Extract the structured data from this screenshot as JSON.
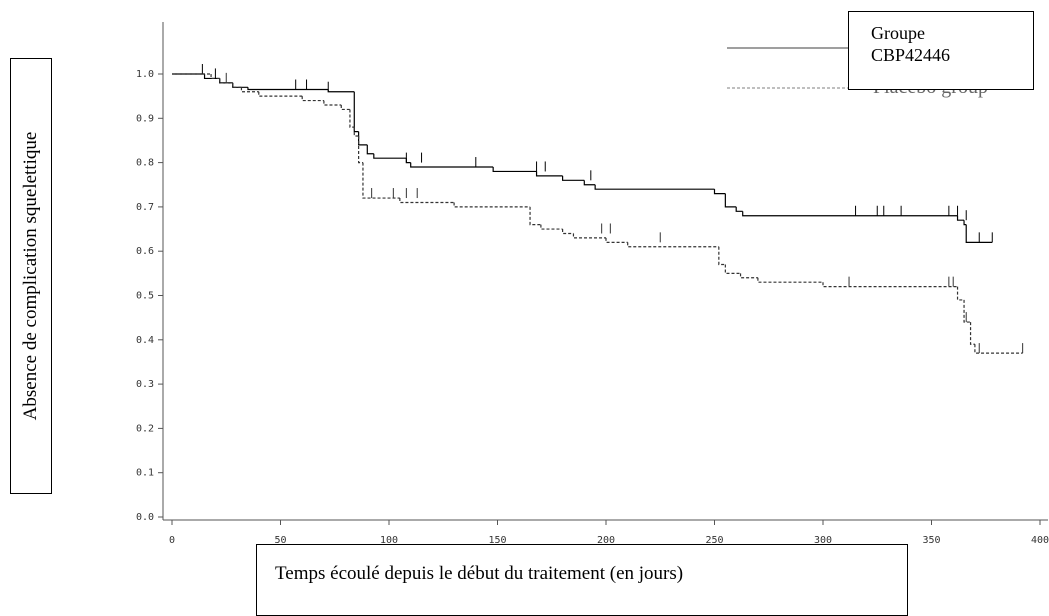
{
  "chart_data": {
    "type": "step",
    "y_label": "Absence de complication squelettique",
    "x_label": "Temps écoulé depuis le début du traitement (en jours)",
    "xlim": [
      0,
      400
    ],
    "xticks": [
      0,
      50,
      100,
      150,
      200,
      250,
      300,
      350,
      400
    ],
    "ylim": [
      0,
      1
    ],
    "yticks": [
      {
        "value": 0,
        "label": "0.0"
      },
      {
        "value": 0.1,
        "label": "0.1"
      },
      {
        "value": 0.2,
        "label": "0.2"
      },
      {
        "value": 0.3,
        "label": "0.3"
      },
      {
        "value": 0.4,
        "label": "0.4"
      },
      {
        "value": 0.5,
        "label": "0.5"
      },
      {
        "value": 0.6,
        "label": "0.6"
      },
      {
        "value": 0.7,
        "label": "0.7"
      },
      {
        "value": 0.8,
        "label": "0.8"
      },
      {
        "value": 0.9,
        "label": "0.9"
      },
      {
        "value": 1,
        "label": "1.0"
      }
    ],
    "series": [
      {
        "name": "Groupe CBP42446",
        "color": "#000000",
        "dash": false,
        "x": [
          0,
          15,
          22,
          28,
          35,
          72,
          84,
          86,
          90,
          93,
          108,
          110,
          148,
          168,
          180,
          190,
          195,
          250,
          255,
          260,
          263,
          362,
          365,
          366,
          378
        ],
        "values": [
          1.0,
          0.99,
          0.98,
          0.97,
          0.965,
          0.96,
          0.87,
          0.84,
          0.82,
          0.81,
          0.8,
          0.79,
          0.78,
          0.77,
          0.76,
          0.75,
          0.74,
          0.73,
          0.7,
          0.69,
          0.68,
          0.67,
          0.66,
          0.62,
          0.62
        ],
        "censored_x": [
          14,
          20,
          57,
          62,
          72,
          108,
          115,
          140,
          168,
          172,
          193,
          315,
          325,
          328,
          336,
          358,
          362,
          366,
          372,
          378
        ],
        "censored_y": [
          1.0,
          0.99,
          0.965,
          0.965,
          0.96,
          0.8,
          0.8,
          0.79,
          0.78,
          0.78,
          0.76,
          0.68,
          0.68,
          0.68,
          0.68,
          0.68,
          0.68,
          0.67,
          0.62,
          0.62
        ]
      },
      {
        "name": "Placebo group",
        "color": "#333333",
        "dash": true,
        "x": [
          0,
          18,
          22,
          28,
          32,
          40,
          60,
          70,
          78,
          82,
          84,
          86,
          88,
          105,
          130,
          165,
          170,
          180,
          185,
          200,
          210,
          252,
          255,
          262,
          270,
          300,
          362,
          365,
          368,
          370,
          392
        ],
        "values": [
          1.0,
          0.99,
          0.98,
          0.97,
          0.96,
          0.95,
          0.94,
          0.93,
          0.92,
          0.88,
          0.86,
          0.8,
          0.72,
          0.71,
          0.7,
          0.66,
          0.65,
          0.64,
          0.63,
          0.62,
          0.61,
          0.57,
          0.55,
          0.54,
          0.53,
          0.52,
          0.49,
          0.44,
          0.39,
          0.37,
          0.37
        ],
        "censored_x": [
          25,
          92,
          102,
          108,
          113,
          198,
          202,
          225,
          312,
          358,
          360,
          366,
          372,
          392
        ],
        "censored_y": [
          0.98,
          0.72,
          0.72,
          0.72,
          0.72,
          0.64,
          0.64,
          0.62,
          0.52,
          0.52,
          0.52,
          0.44,
          0.37,
          0.37
        ]
      }
    ]
  }
}
